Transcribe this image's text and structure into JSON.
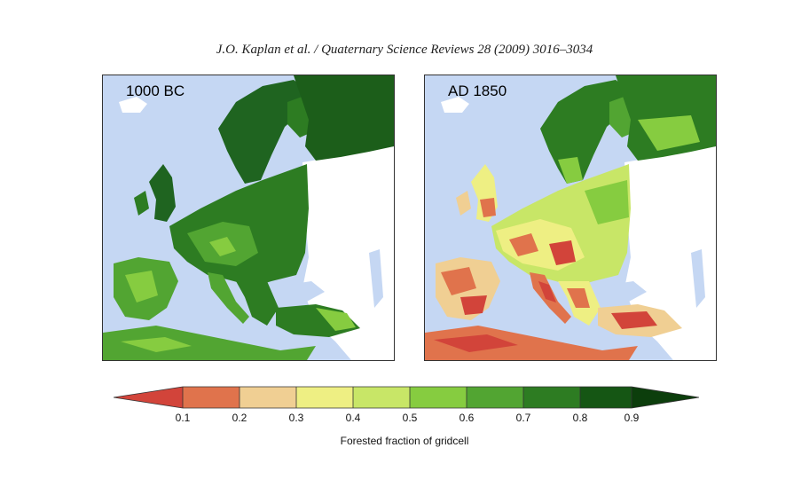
{
  "citation": "J.O. Kaplan et al. / Quaternary Science Reviews 28 (2009) 3016–3034",
  "panels": [
    {
      "label": "1000 BC",
      "dominant_state": "mostly forested"
    },
    {
      "label": "AD 1850",
      "dominant_state": "heavily deforested"
    }
  ],
  "legend": {
    "title": "Forested fraction of gridcell",
    "ticks": [
      "0.1",
      "0.2",
      "0.3",
      "0.4",
      "0.5",
      "0.6",
      "0.7",
      "0.8",
      "0.9"
    ],
    "colors": [
      "#d2443a",
      "#e0734c",
      "#f0cf93",
      "#eeef83",
      "#c8e667",
      "#86cc40",
      "#52a532",
      "#2d7c22",
      "#155614",
      "#0c3e0c"
    ]
  },
  "colors": {
    "sea": "#c5d7f3",
    "no_data": "#ffffff",
    "dense_forest": "#1c5e1a",
    "medium_forest": "#4f9a35",
    "light_forest": "#9ccc55",
    "sparse": "#e9e583",
    "open": "#e0734c"
  }
}
